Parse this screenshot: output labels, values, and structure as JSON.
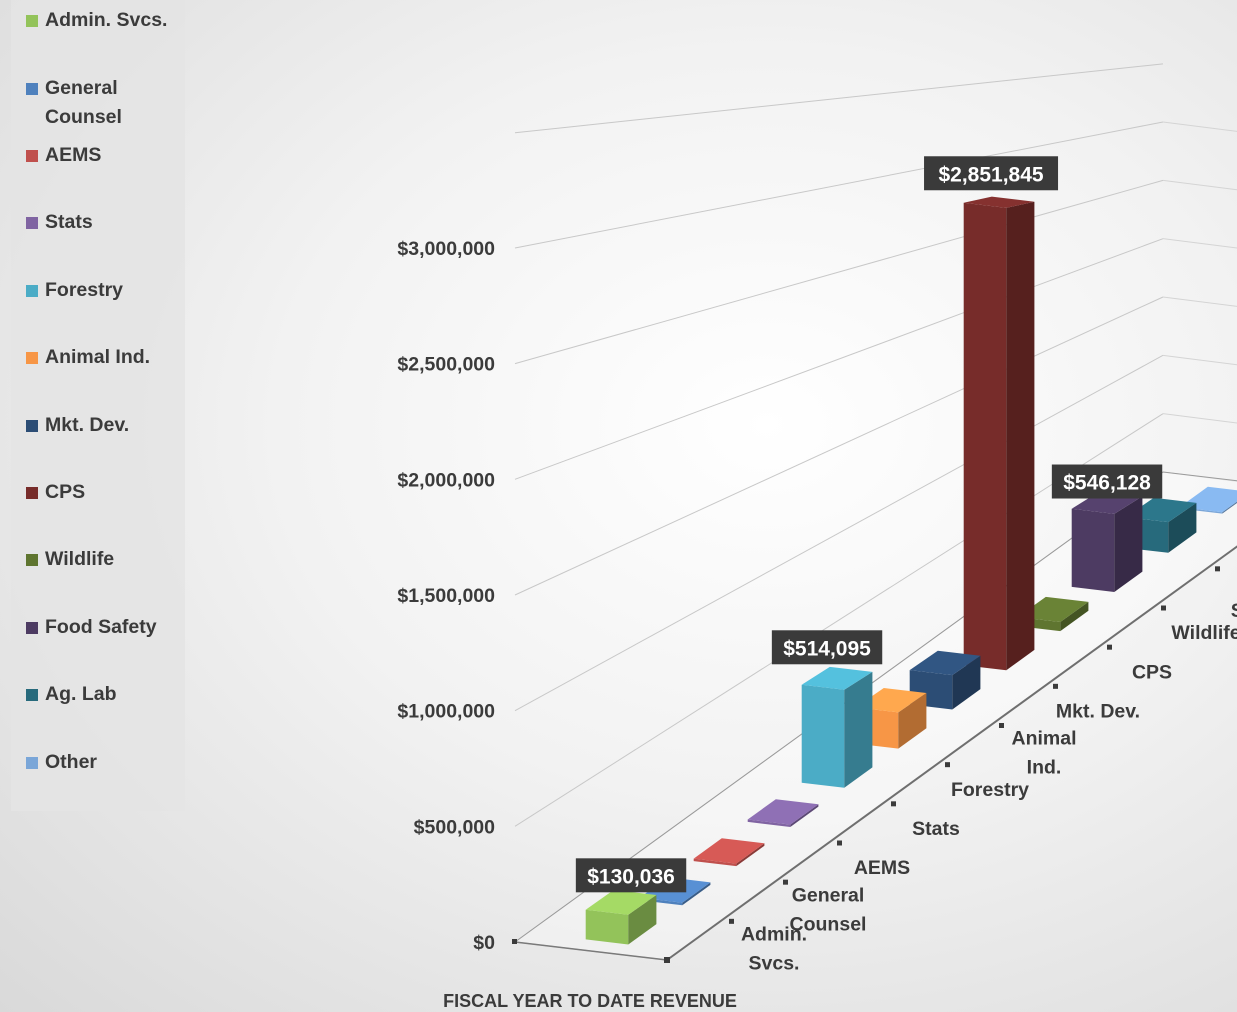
{
  "chart_data": {
    "type": "bar",
    "title": "",
    "xlabel": "FISCAL YEAR TO DATE REVENUE",
    "ylabel": "",
    "ylim": [
      0,
      3000000
    ],
    "y_ticks": [
      "$0",
      "$500,000",
      "$1,000,000",
      "$1,500,000",
      "$2,000,000",
      "$2,500,000",
      "$3,000,000"
    ],
    "categories": [
      "Admin. Svcs.",
      "General Counsel",
      "AEMS",
      "Stats",
      "Forestry",
      "Animal Ind.",
      "Mkt. Dev.",
      "CPS",
      "Wildlife",
      "Food Safety",
      "Ag. Lab",
      "Other"
    ],
    "values": [
      130036,
      5000,
      8000,
      6000,
      514095,
      200000,
      200000,
      2851845,
      60000,
      546128,
      230000,
      4000
    ],
    "colors": [
      "#93c35a",
      "#4f81bd",
      "#c0504d",
      "#8064a2",
      "#4bacc6",
      "#f79646",
      "#2c4d75",
      "#772c2a",
      "#5f7530",
      "#4d3b62",
      "#276a7c",
      "#7aa6d8"
    ],
    "data_labels": [
      {
        "index": 0,
        "text": "$130,036"
      },
      {
        "index": 4,
        "text": "$514,095"
      },
      {
        "index": 7,
        "text": "$2,851,845"
      },
      {
        "index": 9,
        "text": "$546,128"
      }
    ],
    "legend_position": "left",
    "grid": true
  },
  "legend": [
    {
      "label": "Admin. Svcs.",
      "color": "#93c35a"
    },
    {
      "label": "General Counsel",
      "color": "#4f81bd"
    },
    {
      "label": "AEMS",
      "color": "#c0504d"
    },
    {
      "label": "Stats",
      "color": "#8064a2"
    },
    {
      "label": "Forestry",
      "color": "#4bacc6"
    },
    {
      "label": "Animal Ind.",
      "color": "#f79646"
    },
    {
      "label": "Mkt. Dev.",
      "color": "#2c4d75"
    },
    {
      "label": "CPS",
      "color": "#772c2a"
    },
    {
      "label": "Wildlife",
      "color": "#5f7530"
    },
    {
      "label": "Food Safety",
      "color": "#4d3b62"
    },
    {
      "label": "Ag. Lab",
      "color": "#276a7c"
    },
    {
      "label": "Other",
      "color": "#7aa6d8"
    }
  ]
}
